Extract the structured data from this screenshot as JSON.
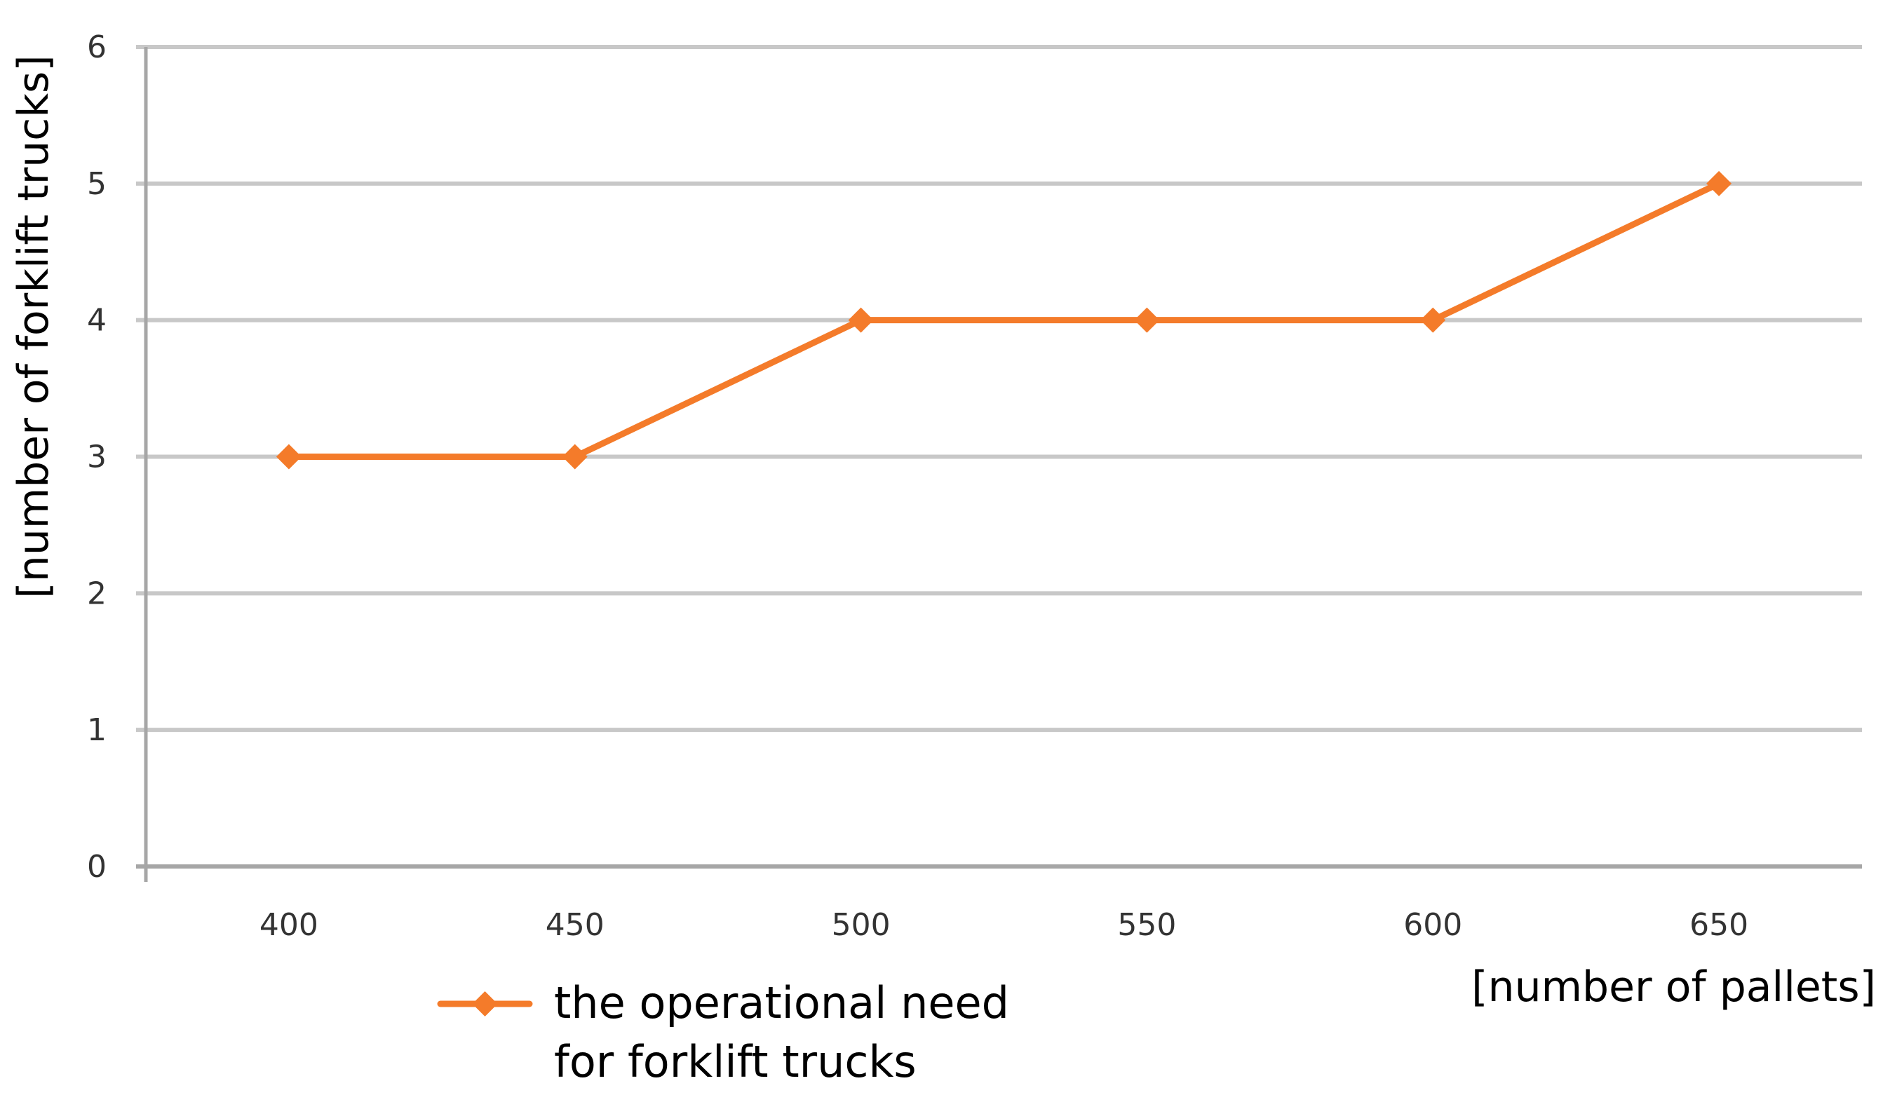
{
  "chart_data": {
    "type": "line",
    "title": "",
    "xlabel": "[number of pallets]",
    "ylabel": "[number of forklift trucks]",
    "categories": [
      "400",
      "450",
      "500",
      "550",
      "600",
      "650"
    ],
    "x": [
      400,
      450,
      500,
      550,
      600,
      650
    ],
    "y_ticks": [
      "0",
      "1",
      "2",
      "3",
      "4",
      "5",
      "6"
    ],
    "ylim": [
      0,
      6
    ],
    "grid": "horizontal",
    "legend_position": "bottom-left",
    "series": [
      {
        "name": "the operational need for forklift trucks",
        "legend_lines": [
          "the operational need",
          "for forklift trucks"
        ],
        "values": [
          3,
          3,
          4,
          4,
          4,
          5
        ],
        "color": "#f47b2a",
        "marker": "diamond"
      }
    ]
  },
  "colors": {
    "grid": "#c8c8c8",
    "axis": "#a6a6a6",
    "series": "#f47b2a"
  }
}
